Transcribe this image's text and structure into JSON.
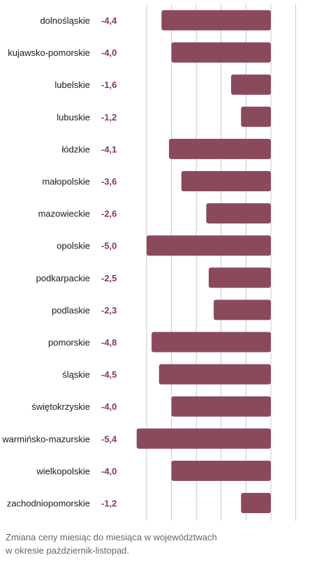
{
  "chart_data": {
    "type": "bar",
    "orientation": "horizontal",
    "categories": [
      "dolnośląskie",
      "kujawsko-pomorskie",
      "lubelskie",
      "lubuskie",
      "łódzkie",
      "małopolskie",
      "mazowieckie",
      "opolskie",
      "podkarpackie",
      "podlaskie",
      "pomorskie",
      "śląskie",
      "świętokrzyskie",
      "warmińsko-mazurskie",
      "wielkopolskie",
      "zachodniopomorskie"
    ],
    "value_labels": [
      "-4,4",
      "-4,0",
      "-1,6",
      "-1,2",
      "-4,1",
      "-3,6",
      "-2,6",
      "-5,0",
      "-2,5",
      "-2,3",
      "-4,8",
      "-4,5",
      "-4,0",
      "-5,4",
      "-4,0",
      "-1,2"
    ],
    "values": [
      -4.4,
      -4.0,
      -1.6,
      -1.2,
      -4.1,
      -3.6,
      -2.6,
      -5.0,
      -2.5,
      -2.3,
      -4.8,
      -4.5,
      -4.0,
      -5.4,
      -4.0,
      -1.2
    ],
    "xlim": [
      -6,
      1
    ],
    "grid": true,
    "bar_color": "#8b4a5c",
    "label_color": "#8b3a4e"
  },
  "caption": {
    "line1": "Zmiana ceny miesiąc do miesiąca w województwach",
    "line2": "w okresie październik-listopad."
  }
}
